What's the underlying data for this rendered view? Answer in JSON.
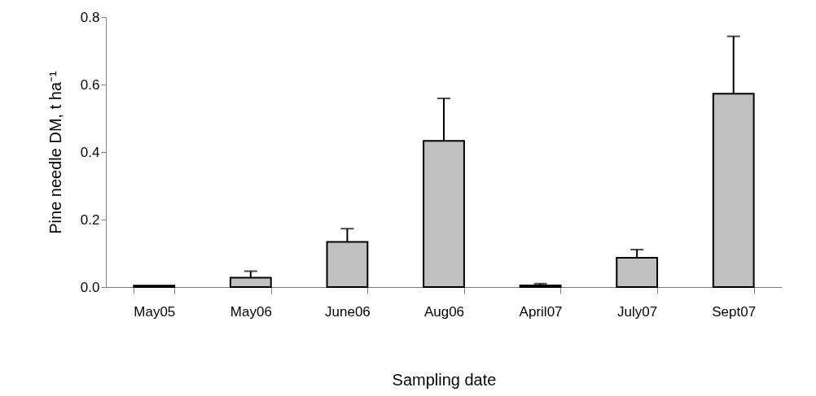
{
  "chart_data": {
    "type": "bar",
    "categories": [
      "May05",
      "May06",
      "June06",
      "Aug06",
      "April07",
      "July07",
      "Sept07"
    ],
    "values": [
      0.004,
      0.028,
      0.134,
      0.433,
      0.005,
      0.087,
      0.573
    ],
    "errors": [
      null,
      [
        0.028,
        0.047
      ],
      [
        0.134,
        0.173
      ],
      [
        0.433,
        0.559
      ],
      [
        0.005,
        0.01
      ],
      [
        0.087,
        0.111
      ],
      [
        0.573,
        0.743
      ]
    ],
    "color": "#c0c0c0",
    "xlabel": "Sampling date",
    "ylabel": "Pine needle DM, t ha⁻¹",
    "ylim": [
      0,
      0.8
    ],
    "yticks": [
      {
        "value": 0,
        "label": "0.0"
      },
      {
        "value": 0.2,
        "label": "0.2"
      },
      {
        "value": 0.4,
        "label": "0.4"
      },
      {
        "value": 0.6,
        "label": "0.6"
      },
      {
        "value": 0.8,
        "label": "0.8"
      }
    ],
    "grid": false
  }
}
